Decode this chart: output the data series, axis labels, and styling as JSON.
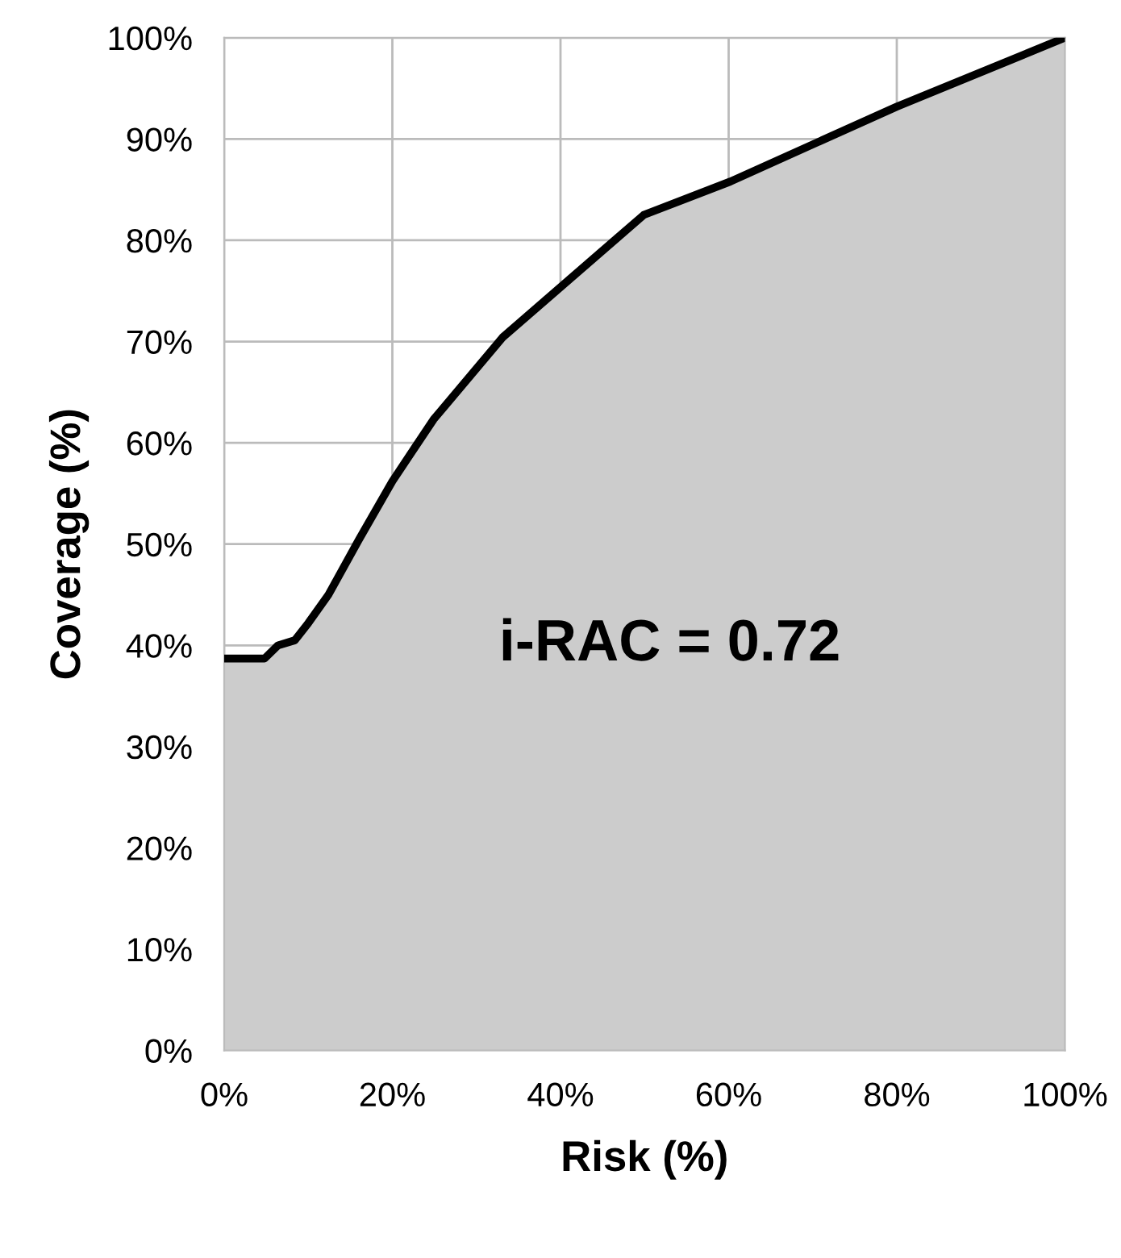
{
  "chart_data": {
    "type": "area",
    "xlabel": "Risk (%)",
    "ylabel": "Coverage (%)",
    "x": [
      0,
      4.8,
      6.4,
      8.4,
      10,
      12.4,
      16,
      20,
      24.9,
      33.1,
      49.9,
      60.2,
      80,
      100
    ],
    "series": [
      {
        "color": "#cccccc",
        "values": [
          38.7,
          38.7,
          40,
          40.5,
          42.2,
          45,
          50.4,
          56.2,
          62.3,
          70.4,
          82.5,
          85.8,
          93.2,
          100
        ]
      }
    ],
    "xlim": [
      0,
      100
    ],
    "ylim": [
      0,
      100
    ],
    "xticks": [
      {
        "value": 0,
        "label": "0%"
      },
      {
        "value": 20,
        "label": "20%"
      },
      {
        "value": 40,
        "label": "40%"
      },
      {
        "value": 60,
        "label": "60%"
      },
      {
        "value": 80,
        "label": "80%"
      },
      {
        "value": 100,
        "label": "100%"
      }
    ],
    "yticks": [
      {
        "value": 0,
        "label": "0%"
      },
      {
        "value": 10,
        "label": "10%"
      },
      {
        "value": 20,
        "label": "20%"
      },
      {
        "value": 30,
        "label": "30%"
      },
      {
        "value": 40,
        "label": "40%"
      },
      {
        "value": 50,
        "label": "50%"
      },
      {
        "value": 60,
        "label": "60%"
      },
      {
        "value": 70,
        "label": "70%"
      },
      {
        "value": 80,
        "label": "80%"
      },
      {
        "value": 90,
        "label": "90%"
      },
      {
        "value": 100,
        "label": "100%"
      }
    ],
    "grid": true,
    "annotations": [
      "i-RAC = 0.72"
    ]
  }
}
